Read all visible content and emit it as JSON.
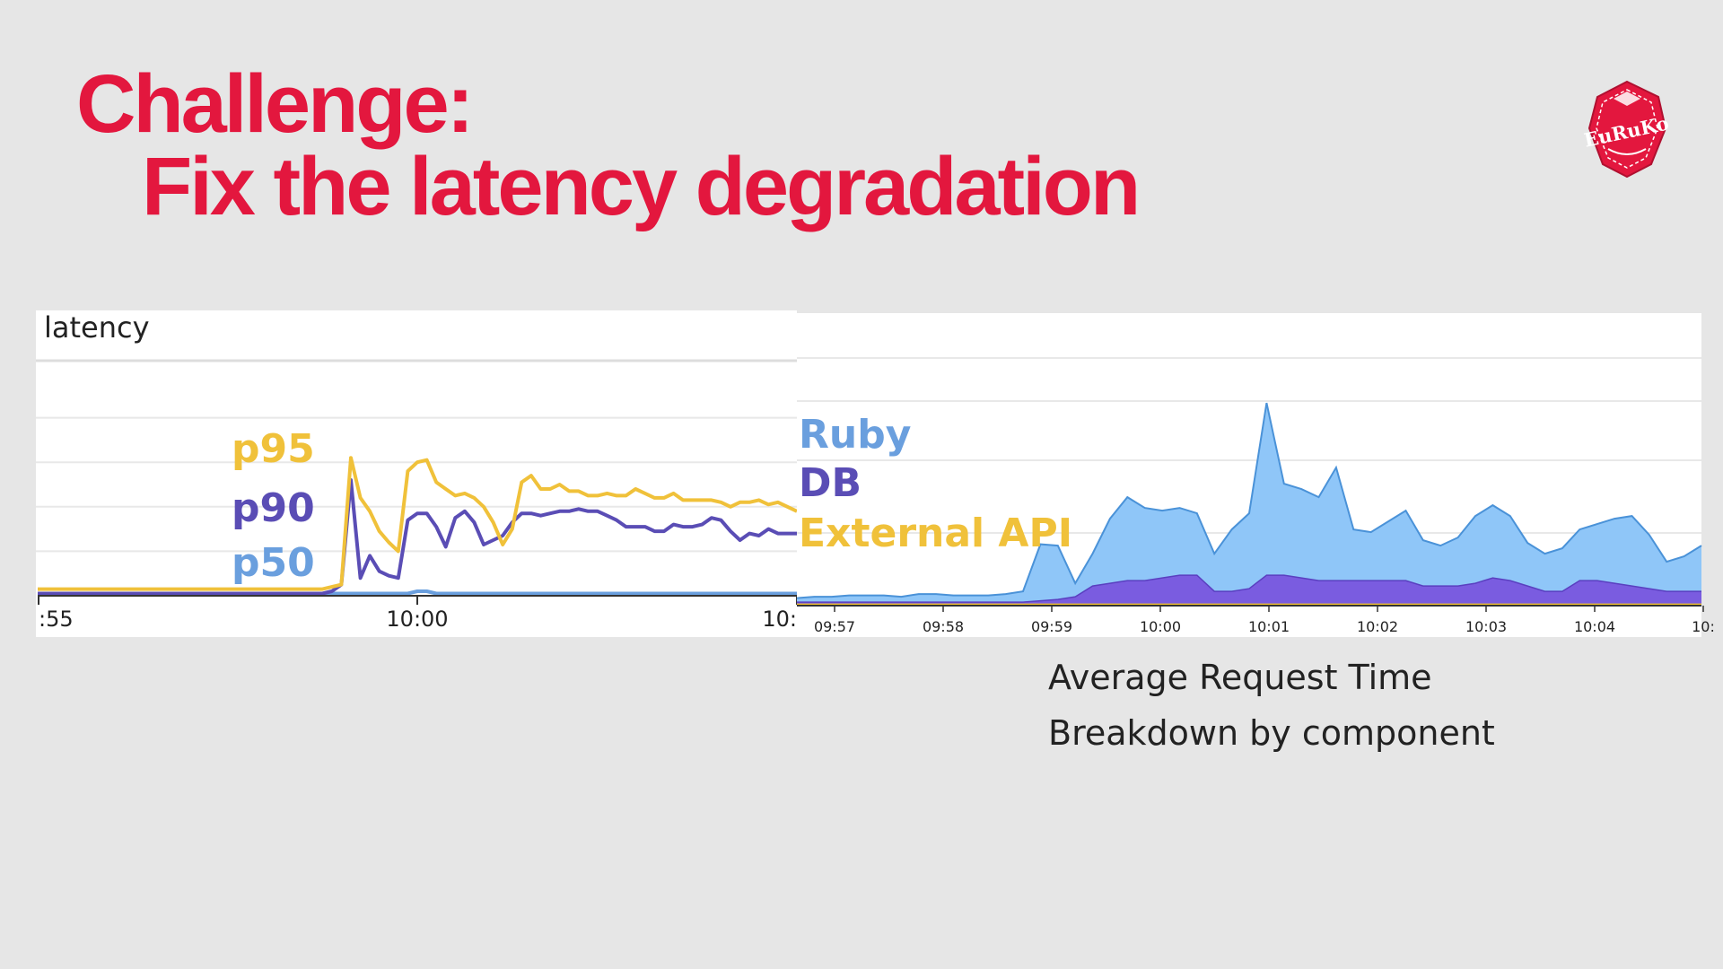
{
  "slide": {
    "title_line1": "Challenge:",
    "title_line2": "Fix the latency degradation",
    "caption_line1": "Average Request Time",
    "caption_line2": "Breakdown by component",
    "logo_text": "EuRuKo"
  },
  "colors": {
    "title": "#e3173e",
    "background": "#e6e6e6",
    "p95": "#f0c13a",
    "p90": "#5a4db5",
    "p50": "#6a9fde",
    "ruby": "#8fc6f8",
    "ruby_line": "#4a92d8",
    "db": "#7a5ce0",
    "db_line": "#5a3fc0",
    "external_api": "#f2c12e",
    "grid": "#e8e8e8"
  },
  "chart_data": [
    {
      "type": "line",
      "title": "latency",
      "x_tick_labels": [
        ":55",
        "10:00",
        "10:"
      ],
      "legend_placement": "inline-left",
      "grid": true,
      "ylim": [
        0,
        100
      ],
      "x": [
        0,
        1,
        2,
        3,
        4,
        5,
        6,
        7,
        8,
        9,
        10,
        11,
        12,
        13,
        14,
        15,
        16,
        17,
        18,
        19,
        20,
        21,
        22,
        23,
        24,
        25,
        26,
        27,
        28,
        29,
        30,
        31,
        32,
        33,
        34,
        35,
        36,
        37,
        38,
        39,
        40,
        41,
        42,
        43,
        44,
        45,
        46,
        47,
        48,
        49,
        50,
        51,
        52,
        53,
        54,
        55,
        56,
        57,
        58,
        59,
        60,
        61,
        62,
        63,
        64,
        65,
        66,
        67,
        68,
        69,
        70,
        71,
        72,
        73,
        74,
        75,
        76,
        77,
        78,
        79,
        80
      ],
      "series": [
        {
          "name": "p95",
          "values": [
            3,
            3,
            3,
            3,
            3,
            3,
            3,
            3,
            3,
            3,
            3,
            3,
            3,
            3,
            3,
            3,
            3,
            3,
            3,
            3,
            3,
            3,
            3,
            3,
            3,
            3,
            3,
            3,
            3,
            3,
            3,
            4,
            5,
            62,
            44,
            38,
            29,
            24,
            20,
            56,
            60,
            61,
            51,
            48,
            45,
            46,
            44,
            40,
            33,
            23,
            30,
            51,
            54,
            48,
            48,
            50,
            47,
            47,
            45,
            45,
            46,
            45,
            45,
            48,
            46,
            44,
            44,
            46,
            43,
            43,
            43,
            43,
            42,
            40,
            42,
            42,
            43,
            41,
            42,
            40,
            38
          ]
        },
        {
          "name": "p90",
          "values": [
            1,
            1,
            1,
            1,
            1,
            1,
            1,
            1,
            1,
            1,
            1,
            1,
            1,
            1,
            1,
            1,
            1,
            1,
            1,
            1,
            1,
            1,
            1,
            1,
            1,
            1,
            1,
            1,
            1,
            1,
            1,
            2,
            5,
            52,
            8,
            18,
            11,
            9,
            8,
            34,
            37,
            37,
            31,
            22,
            35,
            38,
            33,
            23,
            25,
            27,
            33,
            37,
            37,
            36,
            37,
            38,
            38,
            39,
            38,
            38,
            36,
            34,
            31,
            31,
            31,
            29,
            29,
            32,
            31,
            31,
            32,
            35,
            34,
            29,
            25,
            28,
            27,
            30,
            28,
            28,
            28
          ]
        },
        {
          "name": "p50",
          "values": [
            1,
            1,
            1,
            1,
            1,
            1,
            1,
            1,
            1,
            1,
            1,
            1,
            1,
            1,
            1,
            1,
            1,
            1,
            1,
            1,
            1,
            1,
            1,
            1,
            1,
            1,
            1,
            1,
            1,
            1,
            1,
            1,
            1,
            1,
            1,
            1,
            1,
            1,
            1,
            1,
            2,
            2,
            1,
            1,
            1,
            1,
            1,
            1,
            1,
            1,
            1,
            1,
            1,
            1,
            1,
            1,
            1,
            1,
            1,
            1,
            1,
            1,
            1,
            1,
            1,
            1,
            1,
            1,
            1,
            1,
            1,
            1,
            1,
            1,
            1,
            1,
            1,
            1,
            1,
            1,
            1
          ]
        }
      ]
    },
    {
      "type": "area",
      "stacked": true,
      "x_tick_labels": [
        "09:57",
        "09:58",
        "09:59",
        "10:00",
        "10:01",
        "10:02",
        "10:03",
        "10:04",
        "10:"
      ],
      "legend_placement": "inline-left",
      "grid": true,
      "ylim": [
        0,
        100
      ],
      "x": [
        0,
        1,
        2,
        3,
        4,
        5,
        6,
        7,
        8,
        9,
        10,
        11,
        12,
        13,
        14,
        15,
        16,
        17,
        18,
        19,
        20,
        21,
        22,
        23,
        24,
        25,
        26,
        27,
        28,
        29,
        30,
        31,
        32,
        33,
        34,
        35,
        36,
        37,
        38,
        39,
        40,
        41,
        42,
        43,
        44,
        45,
        46,
        47,
        48,
        49,
        50,
        51,
        52
      ],
      "series": [
        {
          "name": "External API",
          "values": [
            0.3,
            0.3,
            0.3,
            0.3,
            0.3,
            0.3,
            0.3,
            0.3,
            0.3,
            0.3,
            0.3,
            0.3,
            0.3,
            0.3,
            0.3,
            0.3,
            0.3,
            0.3,
            0.3,
            0.3,
            0.3,
            0.3,
            0.3,
            0.3,
            0.3,
            0.3,
            0.3,
            0.3,
            0.3,
            0.3,
            0.3,
            0.3,
            0.3,
            0.3,
            0.3,
            0.3,
            0.3,
            0.3,
            0.3,
            0.3,
            0.3,
            0.3,
            0.3,
            0.3,
            0.3,
            0.3,
            0.3,
            0.3,
            0.3,
            0.3,
            0.3,
            0.3,
            0.3
          ]
        },
        {
          "name": "DB",
          "values": [
            1,
            1,
            1,
            1,
            1,
            1,
            1,
            1,
            1,
            1,
            1,
            1,
            1,
            1,
            1.5,
            2,
            3,
            7,
            8,
            9,
            9,
            10,
            11,
            11,
            5,
            5,
            6,
            11,
            11,
            10,
            9,
            9,
            9,
            9,
            9,
            9,
            7,
            7,
            7,
            8,
            10,
            9,
            7,
            5,
            5,
            9,
            9,
            8,
            7,
            6,
            5,
            5,
            5
          ]
        },
        {
          "name": "Ruby",
          "values": [
            1.5,
            2,
            2,
            2.5,
            2.5,
            2.5,
            2,
            3,
            3,
            2.5,
            2.5,
            2.5,
            3,
            4,
            21,
            20,
            5,
            12,
            24,
            31,
            27,
            25,
            25,
            23,
            14,
            23,
            28,
            64,
            34,
            33,
            31,
            42,
            19,
            18,
            22,
            26,
            17,
            15,
            18,
            25,
            27,
            24,
            16,
            14,
            16,
            19,
            21,
            24,
            26,
            20,
            11,
            13,
            17
          ]
        }
      ]
    }
  ]
}
